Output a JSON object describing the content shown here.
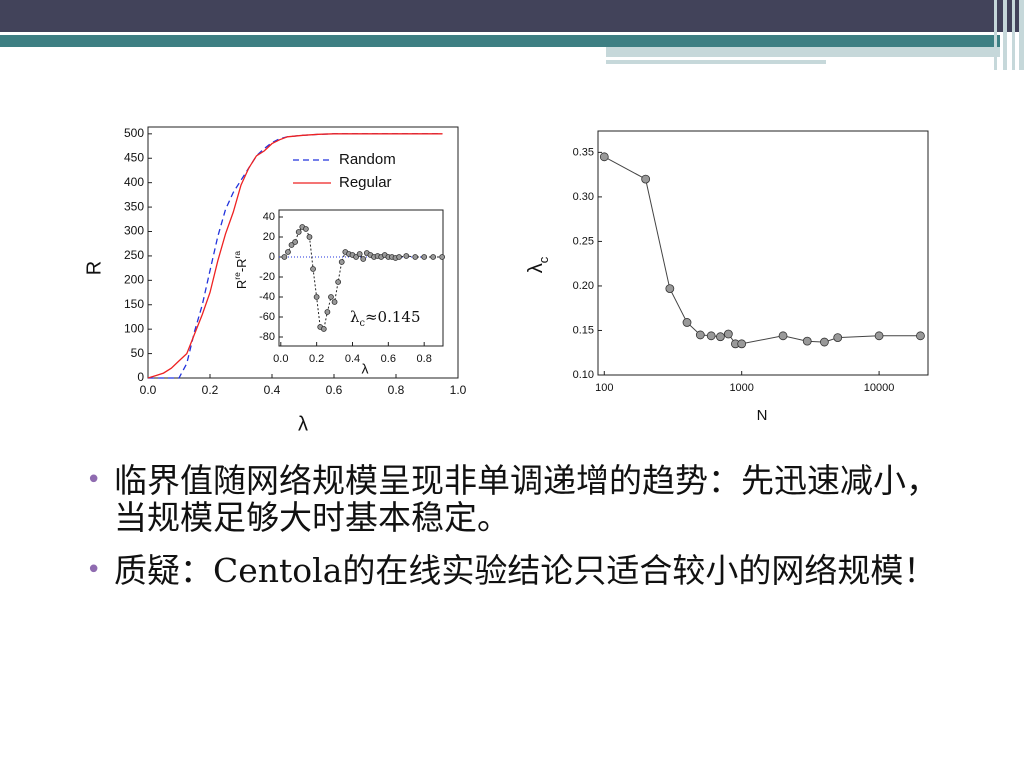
{
  "chart_data": [
    {
      "type": "line",
      "xlabel": "λ",
      "ylabel": "R",
      "legend": "upper right",
      "xlim": [
        0,
        1
      ],
      "ylim": [
        0,
        514
      ],
      "xticks": [
        {
          "value": 0,
          "label": "0.0"
        },
        0.2,
        0.4,
        0.6,
        0.8,
        {
          "value": 1,
          "label": "1.0"
        }
      ],
      "yticks": [
        0,
        50,
        100,
        150,
        200,
        250,
        300,
        350,
        400,
        450,
        500
      ],
      "x": [
        0,
        0.025,
        0.05,
        0.075,
        0.1,
        0.125,
        0.15,
        0.175,
        0.2,
        0.225,
        0.25,
        0.275,
        0.3,
        0.325,
        0.35,
        0.375,
        0.4,
        0.425,
        0.45,
        0.5,
        0.55,
        0.6,
        0.7,
        0.8,
        0.9,
        0.95
      ],
      "series": [
        {
          "name": "Random",
          "color": "#2233dd",
          "style": "dashed",
          "values": [
            0,
            0,
            0,
            0,
            0,
            30,
            95,
            150,
            220,
            290,
            345,
            380,
            405,
            430,
            455,
            470,
            482,
            490,
            494,
            497,
            499,
            500,
            500,
            500,
            500,
            500
          ]
        },
        {
          "name": "Regular",
          "color": "#ee2222",
          "style": "solid",
          "values": [
            0,
            5,
            10,
            20,
            35,
            50,
            90,
            130,
            175,
            240,
            295,
            340,
            395,
            430,
            455,
            465,
            480,
            488,
            494,
            497,
            499,
            500,
            500,
            500,
            500,
            500
          ]
        }
      ]
    },
    {
      "type": "line",
      "xlabel": "λ",
      "ylabel": [
        "R",
        "re",
        "-R",
        "ra"
      ],
      "annotation": [
        "λ",
        "c",
        "≈0.145"
      ],
      "hline": 0,
      "xlim": [
        -0.01,
        0.905
      ],
      "ylim": [
        -89,
        47
      ],
      "xticks": [
        {
          "value": 0,
          "label": "0.0"
        },
        0.2,
        0.4,
        0.6,
        0.8
      ],
      "yticks": [
        -80,
        -60,
        -40,
        -20,
        0,
        20,
        40
      ],
      "x": [
        0.02,
        0.04,
        0.06,
        0.08,
        0.1,
        0.12,
        0.14,
        0.16,
        0.18,
        0.2,
        0.22,
        0.24,
        0.26,
        0.28,
        0.3,
        0.32,
        0.34,
        0.36,
        0.38,
        0.4,
        0.42,
        0.44,
        0.46,
        0.48,
        0.5,
        0.52,
        0.54,
        0.56,
        0.58,
        0.6,
        0.62,
        0.64,
        0.66,
        0.7,
        0.75,
        0.8,
        0.85,
        0.9
      ],
      "series": [
        {
          "name": null,
          "color": "#222222",
          "style": "dotted",
          "markers": true,
          "values": [
            0,
            5,
            12,
            15,
            25,
            30,
            28,
            20,
            -12,
            -40,
            -70,
            -72,
            -55,
            -40,
            -45,
            -25,
            -5,
            5,
            3,
            2,
            0,
            3,
            -2,
            4,
            2,
            0,
            1,
            0,
            2,
            0,
            0,
            -1,
            0,
            1,
            0,
            0,
            0,
            0
          ]
        }
      ]
    },
    {
      "type": "line",
      "xlabel": "N",
      "ylabel": [
        "λ",
        "c"
      ],
      "log_x": true,
      "xlim": [
        90,
        22700
      ],
      "ylim": [
        0.1,
        0.374
      ],
      "xticks": [
        100,
        1000,
        10000
      ],
      "yticks": [
        {
          "value": 0.1,
          "label": "0.10"
        },
        0.15,
        {
          "value": 0.2,
          "label": "0.20"
        },
        0.25,
        {
          "value": 0.3,
          "label": "0.30"
        },
        0.35
      ],
      "x": [
        100,
        200,
        300,
        400,
        500,
        600,
        700,
        800,
        900,
        1000,
        2000,
        3000,
        4000,
        5000,
        10000,
        20000
      ],
      "series": [
        {
          "name": null,
          "color": "#444444",
          "style": "solid",
          "markers": true,
          "values": [
            0.345,
            0.32,
            0.197,
            0.159,
            0.145,
            0.144,
            0.143,
            0.146,
            0.135,
            0.135,
            0.144,
            0.138,
            0.137,
            0.142,
            0.144,
            0.144
          ]
        }
      ]
    }
  ],
  "bullets": [
    "临界值随网络规模呈现非单调递增的趋势：先迅速减小，当规模足够大时基本稳定。",
    "质疑：Centola的在线实验结论只适合较小的网络规模！"
  ]
}
